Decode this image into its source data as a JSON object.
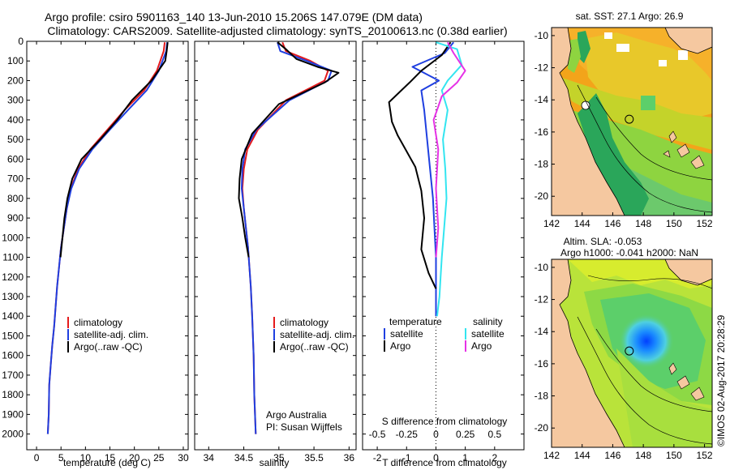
{
  "header": {
    "line1": "Argo profile: csiro 5901163_140 13-Jun-2010 15.206S 147.079E (DM data)",
    "line2": "Climatology: CARS2009. Satellite-adjusted climatology: synTS_20100613.nc (0.38d earlier)"
  },
  "colors": {
    "climatology": "#e41a1c",
    "satellite": "#1f3fe0",
    "argo": "#000000",
    "salinity_satellite": "#33e5f0",
    "salinity_argo": "#e632e6",
    "land": "#f5c8a0"
  },
  "chart_data": [
    {
      "type": "line",
      "name": "temperature-profile",
      "xlabel": "temperature (deg C)",
      "ylabel": "",
      "xlim": [
        -2,
        31
      ],
      "ylim": [
        2080,
        0
      ],
      "xticks": [
        "0",
        "5",
        "10",
        "15",
        "20",
        "25",
        "30"
      ],
      "yticks": [
        "0",
        "100",
        "200",
        "300",
        "400",
        "500",
        "600",
        "700",
        "800",
        "900",
        "1000",
        "1100",
        "1200",
        "1300",
        "1400",
        "1500",
        "1600",
        "1700",
        "1800",
        "1900",
        "2000"
      ],
      "series": [
        {
          "name": "climatology",
          "x": [
            26.2,
            26.0,
            24.6,
            22.0,
            18.0,
            14.5,
            11.0,
            8.5,
            7.0,
            6.2,
            5.6,
            5.0,
            4.6,
            4.2,
            3.9,
            3.6,
            3.2,
            2.9,
            2.6,
            2.5,
            2.3
          ],
          "y": [
            5,
            50,
            150,
            250,
            350,
            450,
            550,
            650,
            750,
            850,
            950,
            1050,
            1150,
            1250,
            1350,
            1450,
            1550,
            1650,
            1750,
            1900,
            2000
          ]
        },
        {
          "name": "satellite-adj. clim.",
          "x": [
            26.7,
            26.5,
            25.0,
            22.5,
            18.7,
            15.0,
            11.4,
            8.7,
            7.1,
            6.2,
            5.6,
            5.0,
            4.6,
            4.2,
            3.9,
            3.6,
            3.2,
            2.9,
            2.6,
            2.5,
            2.3
          ],
          "y": [
            5,
            50,
            150,
            250,
            350,
            450,
            550,
            650,
            750,
            850,
            950,
            1050,
            1150,
            1250,
            1350,
            1450,
            1550,
            1650,
            1750,
            1900,
            2000
          ]
        },
        {
          "name": "Argo(..raw -QC)",
          "x": [
            26.8,
            26.6,
            26.3,
            23.5,
            19.5,
            16.5,
            13.0,
            9.2,
            7.3,
            6.3,
            5.7,
            5.3,
            4.9
          ],
          "y": [
            5,
            50,
            100,
            200,
            300,
            400,
            500,
            600,
            700,
            800,
            900,
            1000,
            1100
          ]
        }
      ],
      "legend": {
        "placement": "center-bottom",
        "items": [
          "climatology",
          "satellite-adj. clim.",
          "Argo(..raw -QC)"
        ]
      }
    },
    {
      "type": "line",
      "name": "salinity-profile",
      "xlabel": "salinity",
      "ylabel": "",
      "xlim": [
        33.8,
        36.1
      ],
      "ylim": [
        2080,
        0
      ],
      "xticks": [
        "34",
        "34.5",
        "35",
        "35.5",
        "36"
      ],
      "series": [
        {
          "name": "climatology",
          "x": [
            35.05,
            35.1,
            35.45,
            35.7,
            35.65,
            35.1,
            34.7,
            34.55,
            34.5,
            34.48,
            34.5,
            34.53,
            34.56,
            34.58,
            34.6,
            34.62,
            34.64,
            34.65,
            34.66,
            34.67
          ],
          "y": [
            5,
            50,
            100,
            150,
            200,
            300,
            450,
            550,
            650,
            750,
            850,
            950,
            1050,
            1150,
            1250,
            1400,
            1600,
            1800,
            1900,
            2000
          ]
        },
        {
          "name": "satellite-adj. clim.",
          "x": [
            34.98,
            35.02,
            35.4,
            35.75,
            35.7,
            35.15,
            34.68,
            34.52,
            34.48,
            34.47,
            34.5,
            34.53,
            34.56,
            34.58,
            34.6,
            34.62,
            34.64,
            34.65,
            34.66,
            34.67
          ],
          "y": [
            5,
            50,
            100,
            150,
            200,
            300,
            450,
            550,
            650,
            750,
            850,
            950,
            1050,
            1150,
            1250,
            1400,
            1600,
            1800,
            1900,
            2000
          ]
        },
        {
          "name": "Argo(..raw -QC)",
          "x": [
            34.98,
            35.1,
            35.25,
            35.55,
            35.85,
            35.65,
            35.0,
            34.62,
            34.47,
            34.44,
            34.43,
            34.48,
            34.52,
            34.57
          ],
          "y": [
            5,
            40,
            90,
            130,
            160,
            210,
            320,
            470,
            600,
            700,
            800,
            900,
            1000,
            1100
          ]
        }
      ],
      "legend": {
        "placement": "center-bottom",
        "items": [
          "climatology",
          "satellite-adj. clim.",
          "Argo(..raw -QC)"
        ]
      },
      "annotations": [
        "Argo Australia",
        "PI: Susan Wijffels"
      ]
    },
    {
      "type": "line",
      "name": "difference-profile",
      "xlabel": "T difference from climatology",
      "x2label": "S difference from climatology",
      "xlim": [
        -2.5,
        3
      ],
      "x2lim": [
        -0.625,
        0.75
      ],
      "ylim": [
        2080,
        0
      ],
      "xticks": [
        "-2",
        "-1",
        "0",
        "1",
        "2"
      ],
      "x2ticks": [
        "-0.5",
        "-0.25",
        "0",
        "0.25",
        "0.5"
      ],
      "series": [
        {
          "name": "temperature satellite",
          "axis": "T",
          "x": [
            0.6,
            0.3,
            -0.8,
            0.1,
            -0.5,
            -0.4,
            -0.3,
            -0.2,
            -0.1,
            -0.05,
            0,
            0,
            0,
            0,
            0
          ],
          "y": [
            5,
            60,
            130,
            200,
            250,
            350,
            500,
            650,
            800,
            950,
            1100,
            1200,
            1300,
            1400,
            1400
          ]
        },
        {
          "name": "temperature Argo",
          "axis": "T",
          "x": [
            0.5,
            0.2,
            -0.5,
            -0.9,
            -1.6,
            -1.5,
            -1.3,
            -1.0,
            -0.7,
            -0.5,
            -0.4,
            -0.5,
            -0.25,
            0
          ],
          "y": [
            5,
            70,
            150,
            210,
            310,
            410,
            480,
            560,
            640,
            760,
            900,
            1060,
            1180,
            1260
          ]
        },
        {
          "name": "salinity satellite",
          "axis": "S",
          "x": [
            0.0,
            0.18,
            0.22,
            0.1,
            0.05,
            0.1,
            0.06,
            0.08,
            0.09,
            0.07,
            0.05,
            0.04,
            0.03,
            0.02,
            0.01
          ],
          "y": [
            5,
            40,
            120,
            200,
            250,
            350,
            500,
            650,
            800,
            950,
            1100,
            1200,
            1300,
            1350,
            1400
          ]
        },
        {
          "name": "salinity Argo",
          "axis": "S",
          "x": [
            0.1,
            0.15,
            0.25,
            0.18,
            0.05,
            -0.02,
            0.02,
            0.0,
            0.02,
            0.0
          ],
          "y": [
            5,
            60,
            150,
            210,
            280,
            400,
            550,
            750,
            950,
            1100
          ]
        }
      ],
      "legend": {
        "placement": "center",
        "headers": [
          "temperature",
          "salinity"
        ],
        "items": [
          "satellite",
          "Argo",
          "satellite",
          "Argo"
        ]
      }
    },
    {
      "type": "heatmap",
      "name": "sst-map",
      "title": "sat. SST: 27.1  Argo: 26.9",
      "xlim": [
        142,
        152.5
      ],
      "ylim": [
        -21.2,
        -9.5
      ],
      "xticks": [
        "142",
        "144",
        "146",
        "148",
        "150",
        "152"
      ],
      "yticks": [
        "-10",
        "-12",
        "-14",
        "-16",
        "-18",
        "-20"
      ],
      "argo_position": {
        "lon": 147.079,
        "lat": -15.206
      }
    },
    {
      "type": "heatmap",
      "name": "sla-map",
      "title_line1": "Altim. SLA: -0.053",
      "title_line2": "Argo h1000: -0.041  h2000: NaN",
      "xlim": [
        142,
        152.5
      ],
      "ylim": [
        -21.2,
        -9.5
      ],
      "xticks": [
        "142",
        "144",
        "146",
        "148",
        "150",
        "152"
      ],
      "yticks": [
        "-10",
        "-12",
        "-14",
        "-16",
        "-18",
        "-20"
      ],
      "argo_position": {
        "lon": 147.079,
        "lat": -15.206
      }
    }
  ],
  "footer": {
    "credit": "©IMOS 02-Aug-2017 20:28:29"
  }
}
